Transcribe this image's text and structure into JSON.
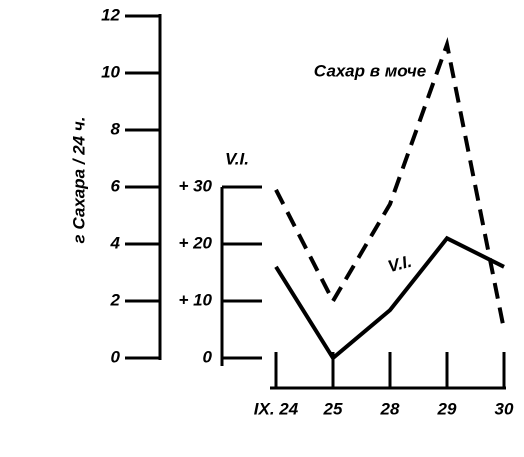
{
  "chart_data": {
    "type": "line",
    "y_label": "г Сахара / 24 ч.",
    "y2_label": "V.I.",
    "categories": [
      "IX. 24",
      "25",
      "28",
      "29",
      "30"
    ],
    "series": [
      {
        "name": "Сахар в моче",
        "color": "#000000",
        "dash": true,
        "values": [
          5.9,
          2.0,
          5.4,
          11.0,
          1.0
        ]
      },
      {
        "name": "V.I.",
        "color": "#000000",
        "dash": false,
        "axis": "y2",
        "values": [
          16,
          0,
          8.4,
          21,
          16
        ]
      }
    ],
    "ylim": [
      0,
      12
    ],
    "yticks": [
      0,
      2,
      4,
      6,
      8,
      10,
      12
    ],
    "y2lim": [
      0,
      30
    ],
    "y2ticks": [
      0,
      {
        "value": 10,
        "label": "+ 10"
      },
      {
        "value": 20,
        "label": "+ 20"
      },
      {
        "value": 30,
        "label": "+ 30"
      }
    ]
  }
}
